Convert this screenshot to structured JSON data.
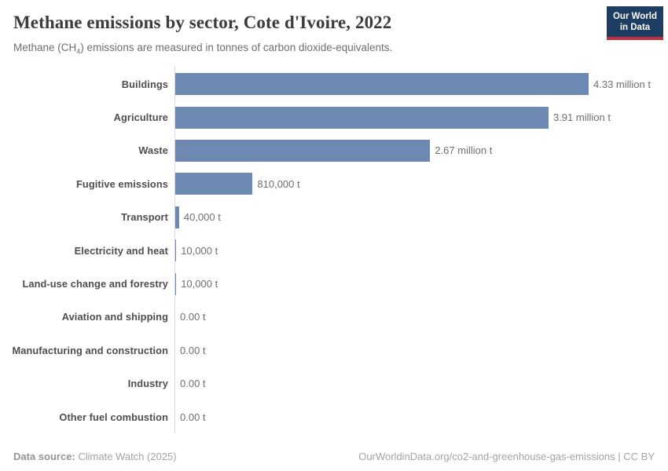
{
  "header": {
    "title": "Methane emissions by sector, Cote d'Ivoire, 2022",
    "subtitle_prefix": "Methane (CH",
    "subtitle_sub": "4",
    "subtitle_suffix": ") emissions are measured in tonnes of carbon dioxide-equivalents.",
    "logo": {
      "line1": "Our World",
      "line2": "in Data"
    }
  },
  "chart_data": {
    "type": "bar",
    "orientation": "horizontal",
    "title": "Methane emissions by sector, Cote d'Ivoire, 2022",
    "subtitle": "Methane (CH₄) emissions are measured in tonnes of carbon dioxide-equivalents.",
    "unit": "tonnes of carbon dioxide-equivalents",
    "categories": [
      "Buildings",
      "Agriculture",
      "Waste",
      "Fugitive emissions",
      "Transport",
      "Electricity and heat",
      "Land-use change and forestry",
      "Aviation and shipping",
      "Manufacturing and construction",
      "Industry",
      "Other fuel combustion"
    ],
    "values": [
      4330000,
      3910000,
      2670000,
      810000,
      40000,
      10000,
      10000,
      0,
      0,
      0,
      0
    ],
    "value_labels": [
      "4.33 million t",
      "3.91 million t",
      "2.67 million t",
      "810,000 t",
      "40,000 t",
      "10,000 t",
      "10,000 t",
      "0.00 t",
      "0.00 t",
      "0.00 t",
      "0.00 t"
    ],
    "xlim": [
      0,
      4330000
    ],
    "grid": false,
    "legend": "none",
    "bar_color": "#6d89b1",
    "axis_line_color": "#dcdcdc"
  },
  "footer": {
    "datasource_label": "Data source:",
    "datasource_value": "Climate Watch (2025)",
    "credit": "OurWorldinData.org/co2-and-greenhouse-gas-emissions | CC BY"
  },
  "brand": {
    "navy": "#1d3d63",
    "red": "#c5303e"
  }
}
